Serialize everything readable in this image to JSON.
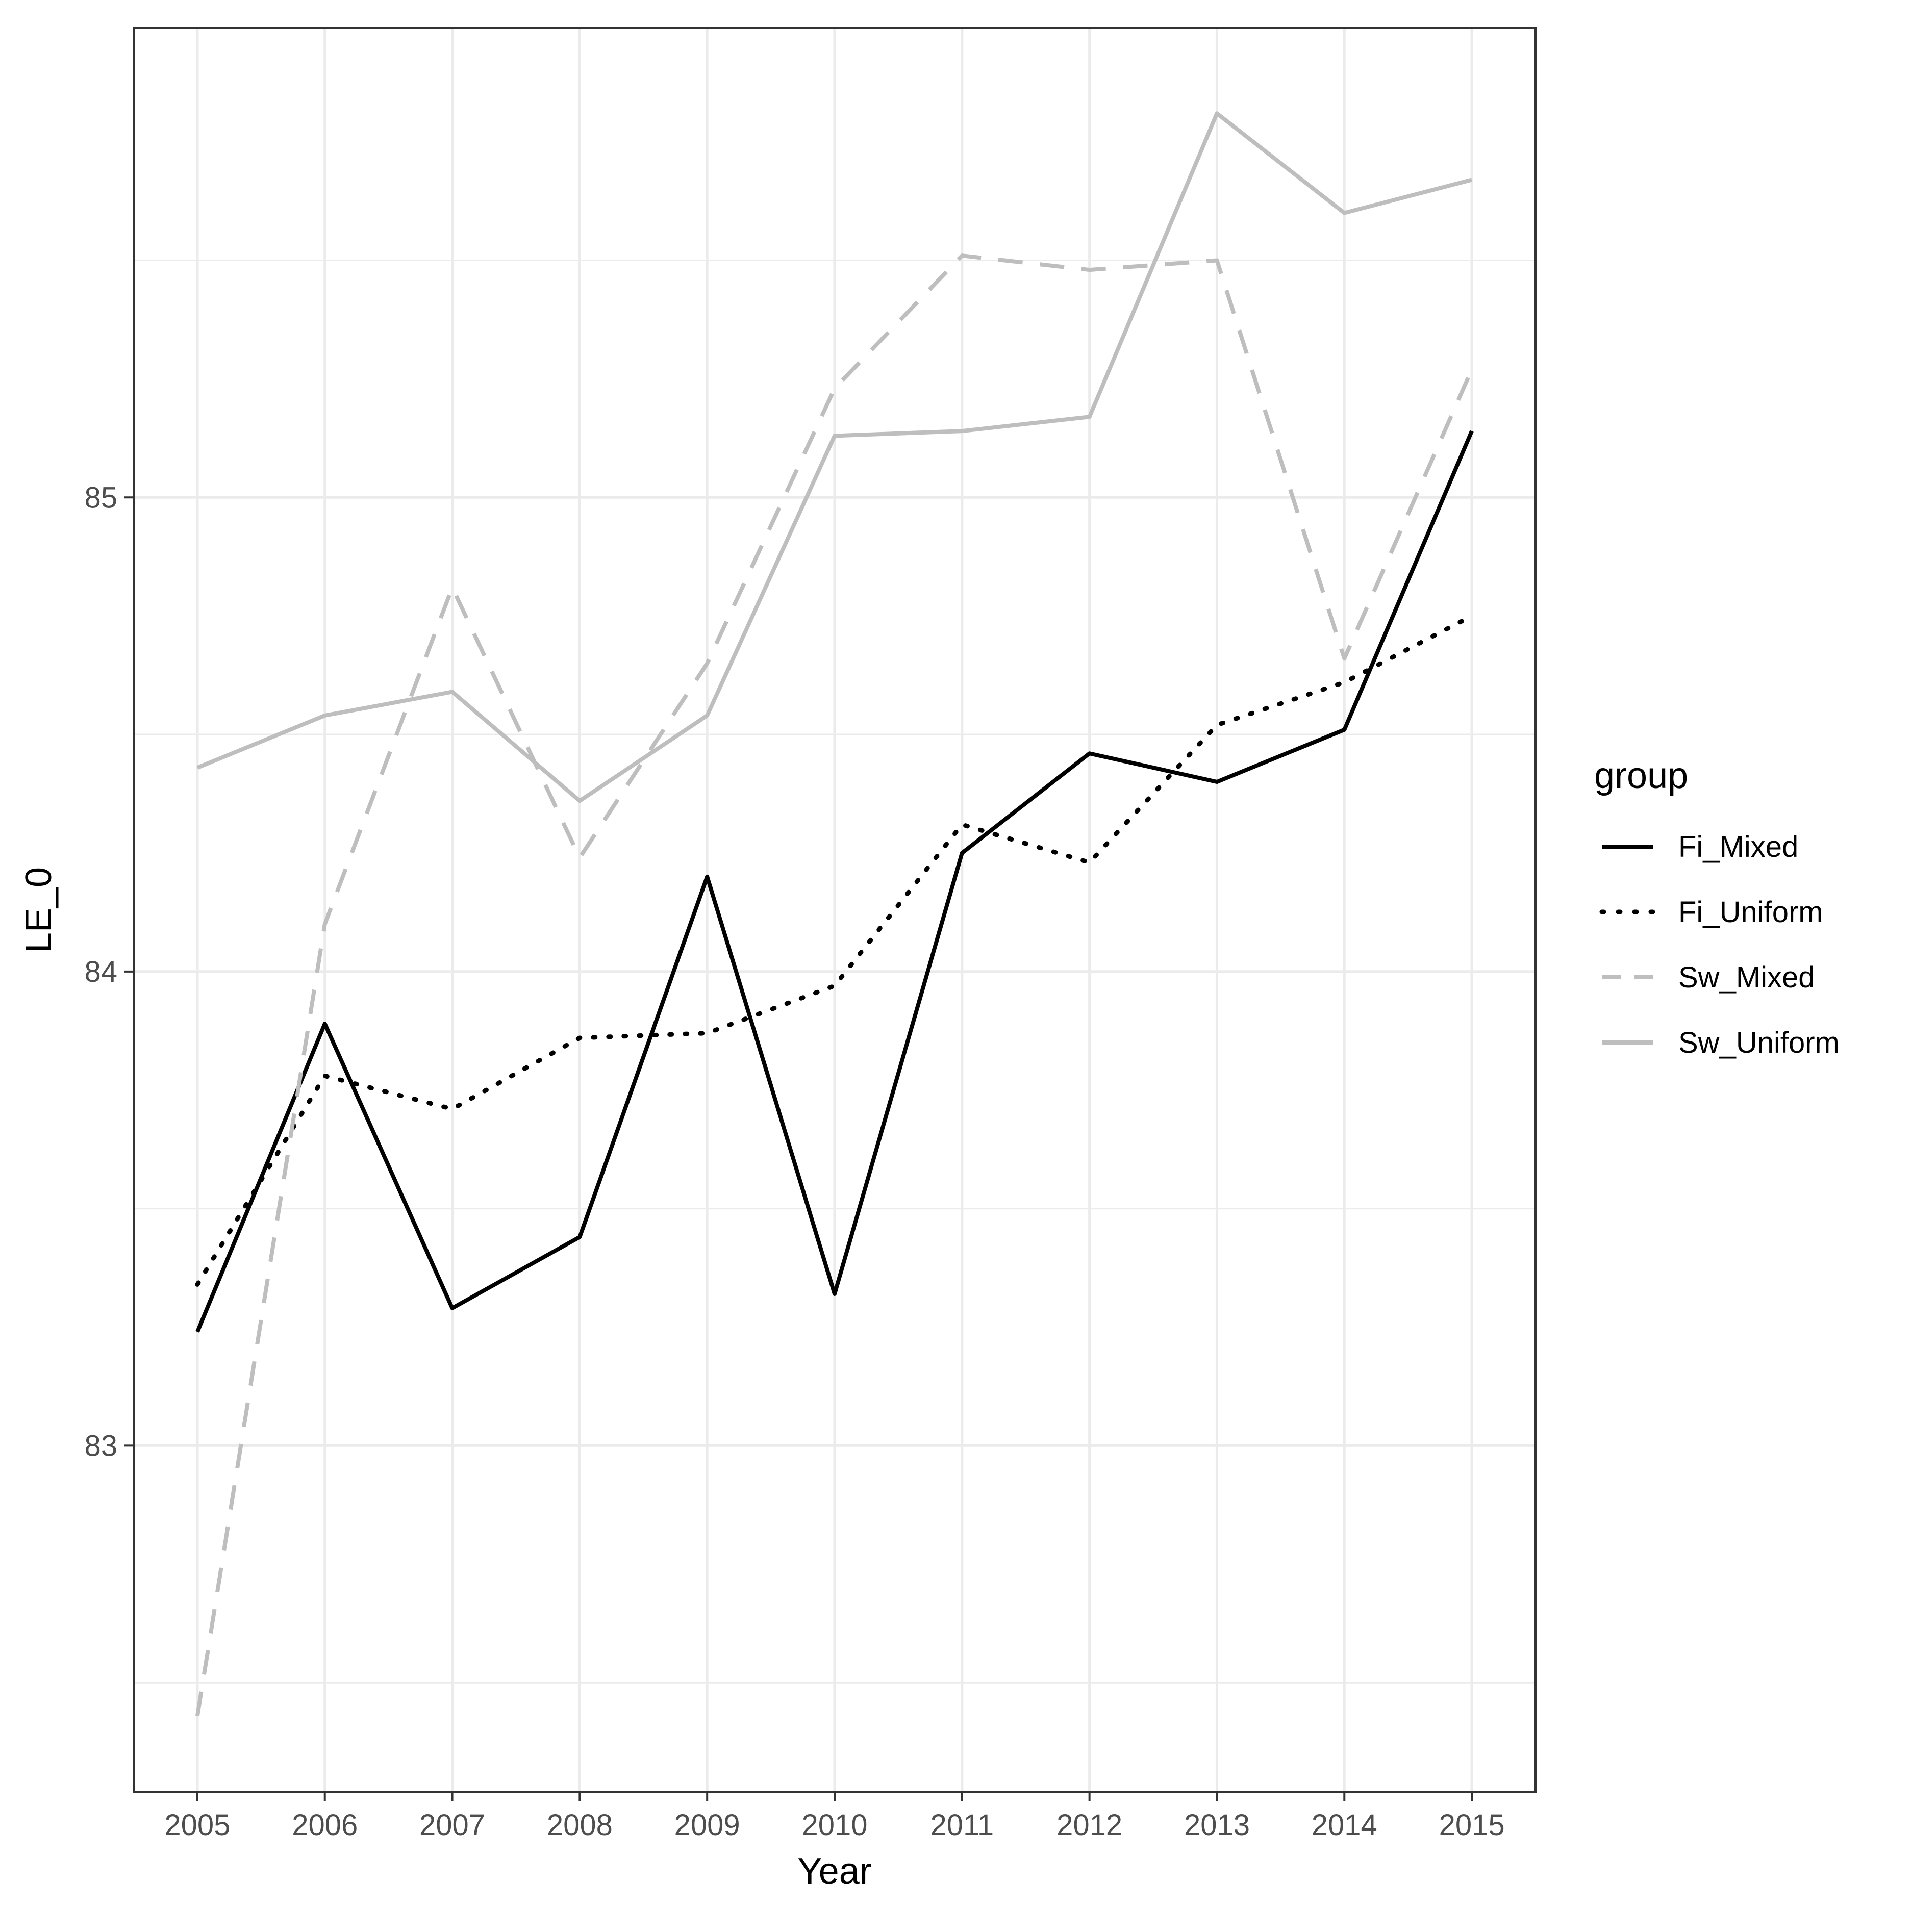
{
  "chart_data": {
    "type": "line",
    "title": "",
    "xlabel": "Year",
    "ylabel": "LE_0",
    "x": [
      2005,
      2006,
      2007,
      2008,
      2009,
      2010,
      2011,
      2012,
      2013,
      2014,
      2015
    ],
    "xlim": [
      2004.5,
      2015.5
    ],
    "ylim": [
      82.27,
      85.99
    ],
    "yticks": [
      83,
      84,
      85
    ],
    "grid": true,
    "legend": {
      "title": "group",
      "position": "right"
    },
    "series": [
      {
        "name": "Fi_Mixed",
        "color": "#000000",
        "dash": "solid",
        "values": [
          83.24,
          83.89,
          83.29,
          83.44,
          84.2,
          83.32,
          84.25,
          84.46,
          84.4,
          84.51,
          85.14
        ]
      },
      {
        "name": "Fi_Uniform",
        "color": "#000000",
        "dash": "dotted",
        "values": [
          83.34,
          83.78,
          83.71,
          83.86,
          83.87,
          83.97,
          84.31,
          84.23,
          84.52,
          84.61,
          84.75
        ]
      },
      {
        "name": "Sw_Mixed",
        "color": "#bebebe",
        "dash": "dashed",
        "values": [
          82.43,
          84.1,
          84.81,
          84.24,
          84.65,
          85.23,
          85.51,
          85.48,
          85.5,
          84.66,
          85.27
        ]
      },
      {
        "name": "Sw_Uniform",
        "color": "#bebebe",
        "dash": "solid",
        "values": [
          84.43,
          84.54,
          84.59,
          84.36,
          84.54,
          85.13,
          85.14,
          85.17,
          85.81,
          85.6,
          85.67
        ]
      }
    ]
  }
}
